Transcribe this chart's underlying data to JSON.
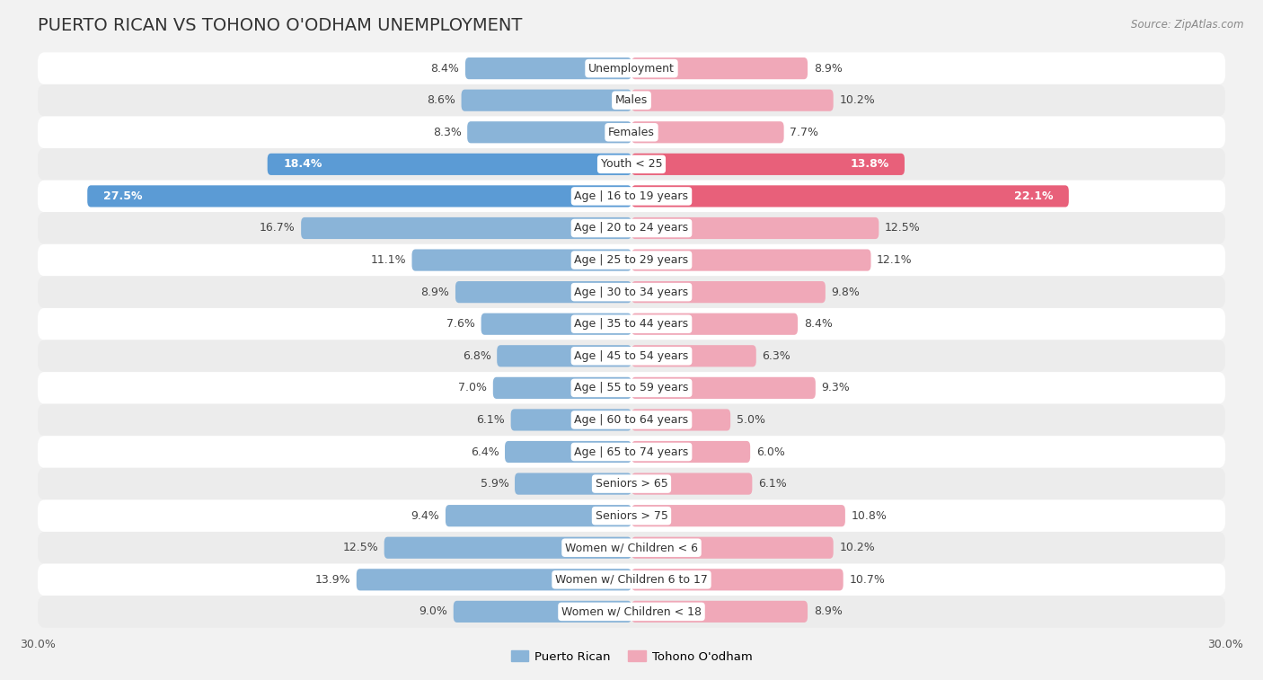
{
  "title": "PUERTO RICAN VS TOHONO O'ODHAM UNEMPLOYMENT",
  "source": "Source: ZipAtlas.com",
  "categories": [
    "Unemployment",
    "Males",
    "Females",
    "Youth < 25",
    "Age | 16 to 19 years",
    "Age | 20 to 24 years",
    "Age | 25 to 29 years",
    "Age | 30 to 34 years",
    "Age | 35 to 44 years",
    "Age | 45 to 54 years",
    "Age | 55 to 59 years",
    "Age | 60 to 64 years",
    "Age | 65 to 74 years",
    "Seniors > 65",
    "Seniors > 75",
    "Women w/ Children < 6",
    "Women w/ Children 6 to 17",
    "Women w/ Children < 18"
  ],
  "puerto_rican": [
    8.4,
    8.6,
    8.3,
    18.4,
    27.5,
    16.7,
    11.1,
    8.9,
    7.6,
    6.8,
    7.0,
    6.1,
    6.4,
    5.9,
    9.4,
    12.5,
    13.9,
    9.0
  ],
  "tohono_oodham": [
    8.9,
    10.2,
    7.7,
    13.8,
    22.1,
    12.5,
    12.1,
    9.8,
    8.4,
    6.3,
    9.3,
    5.0,
    6.0,
    6.1,
    10.8,
    10.2,
    10.7,
    8.9
  ],
  "puerto_rican_color_normal": "#8ab4d8",
  "tohono_color_normal": "#f0a8b8",
  "puerto_rican_color_highlight": "#5b9bd5",
  "tohono_color_highlight": "#e8607a",
  "highlight_rows": [
    3,
    4
  ],
  "bar_height": 0.68,
  "xlim": 30.0,
  "bg_color": "#f2f2f2",
  "row_bg_white": "#ffffff",
  "row_bg_gray": "#ececec",
  "label_fontsize": 9,
  "value_fontsize": 9,
  "title_fontsize": 14
}
